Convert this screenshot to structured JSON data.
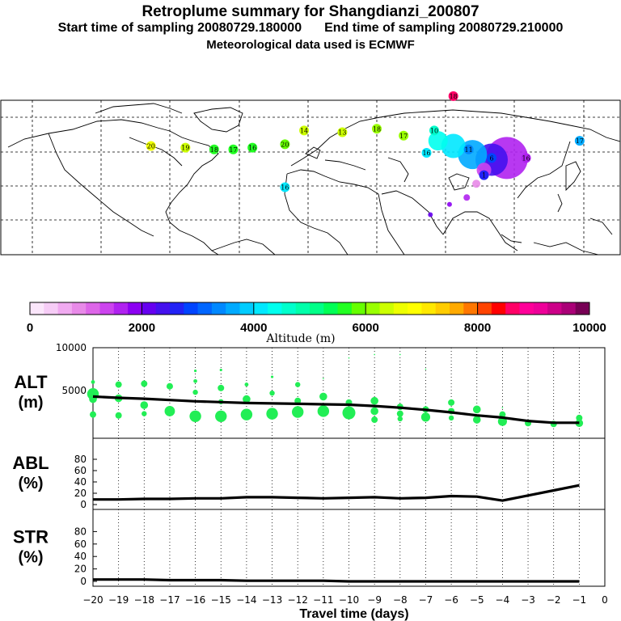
{
  "header": {
    "title": "Retroplume summary for Shangdianzi_200807",
    "start_label": "Start time of sampling 20080729.180000",
    "end_label": "End time of sampling 20080729.210000",
    "met_label": "Meteorological data used is ECMWF"
  },
  "colorbar": {
    "label": "Altitude (m)",
    "ticks": [
      "0",
      "2000",
      "4000",
      "6000",
      "8000",
      "10000"
    ],
    "min": 0,
    "max": 10000,
    "colors": [
      "#fbe6fb",
      "#f6ccf6",
      "#f0aaf0",
      "#e88ae8",
      "#dd66e8",
      "#cc44ee",
      "#b022f0",
      "#8c00f2",
      "#6600f0",
      "#4411ee",
      "#2222f5",
      "#0044ff",
      "#0066ff",
      "#0088ff",
      "#00aaff",
      "#00ccff",
      "#00e8ff",
      "#00ffee",
      "#00ffcc",
      "#00ffaa",
      "#00ff88",
      "#00ff55",
      "#22ff22",
      "#66ff00",
      "#99ff00",
      "#ccff00",
      "#eeff00",
      "#ffff00",
      "#ffe800",
      "#ffcc00",
      "#ffaa00",
      "#ff7700",
      "#ff4400",
      "#ff0000",
      "#ff0066",
      "#ff0099",
      "#ee0099",
      "#cc0088",
      "#aa0077",
      "#770055"
    ]
  },
  "map": {
    "labels": [
      {
        "text": "20",
        "lon": -28,
        "lat": 52,
        "alt": 6500
      },
      {
        "text": "19",
        "lon": -10,
        "lat": 51,
        "alt": 6300
      },
      {
        "text": "18",
        "lon": 5,
        "lat": 50,
        "alt": 5600
      },
      {
        "text": "17",
        "lon": 15,
        "lat": 50,
        "alt": 5700
      },
      {
        "text": "16",
        "lon": 25,
        "lat": 51,
        "alt": 5500
      },
      {
        "text": "20",
        "lon": 42,
        "lat": 53,
        "alt": 5800
      },
      {
        "text": "14",
        "lon": 52,
        "lat": 61,
        "alt": 6300
      },
      {
        "text": "16",
        "lon": 42,
        "lat": 28,
        "alt": 4200
      },
      {
        "text": "13",
        "lon": 72,
        "lat": 60,
        "alt": 6400
      },
      {
        "text": "18",
        "lon": 90,
        "lat": 62,
        "alt": 6200
      },
      {
        "text": "17",
        "lon": 104,
        "lat": 58,
        "alt": 6100
      },
      {
        "text": "10",
        "lon": 120,
        "lat": 61,
        "alt": 4600
      },
      {
        "text": "16",
        "lon": 116,
        "lat": 48,
        "alt": 4200
      },
      {
        "text": "11",
        "lon": 138,
        "lat": 50,
        "alt": 3300
      },
      {
        "text": "6",
        "lon": 150,
        "lat": 45,
        "alt": 2800
      },
      {
        "text": "16",
        "lon": 168,
        "lat": 45,
        "alt": 1600
      },
      {
        "text": "17",
        "lon": 196,
        "lat": 55,
        "alt": 3600
      },
      {
        "text": "18",
        "lon": 130,
        "lat": 81,
        "alt": 8600
      },
      {
        "text": "1",
        "lon": 146,
        "lat": 35,
        "alt": 2600
      }
    ]
  },
  "chart_data": {
    "type": "scatter",
    "x_label": "Travel time (days)",
    "x_ticks": [
      "-20",
      "-19",
      "-18",
      "-17",
      "-16",
      "-15",
      "-14",
      "-13",
      "-12",
      "-11",
      "-10",
      "-9",
      "-8",
      "-7",
      "-6",
      "-5",
      "-4",
      "-3",
      "-2",
      "-1",
      "0"
    ],
    "xlim": [
      -20,
      0
    ],
    "panels": [
      {
        "name": "ALT",
        "label_top": "ALT",
        "label_bottom": "(m)",
        "ylim": [
          0,
          10000
        ],
        "y_ticks": [
          "5000",
          "10000"
        ],
        "mean_line": {
          "x": [
            -20,
            -19,
            -18,
            -17,
            -16,
            -15,
            -14,
            -13,
            -12,
            -11,
            -10,
            -9,
            -8,
            -7,
            -6,
            -5,
            -4,
            -3,
            -2,
            -1
          ],
          "y": [
            4300,
            4150,
            4050,
            3900,
            3750,
            3650,
            3550,
            3500,
            3450,
            3400,
            3350,
            3200,
            3000,
            2750,
            2450,
            2100,
            1850,
            1450,
            1250,
            1250
          ]
        },
        "points": [
          {
            "x": -20,
            "y": 4600,
            "s": 9
          },
          {
            "x": -20,
            "y": 4000,
            "s": 6
          },
          {
            "x": -20,
            "y": 6000,
            "s": 3
          },
          {
            "x": -20,
            "y": 2200,
            "s": 5
          },
          {
            "x": -19,
            "y": 5700,
            "s": 5
          },
          {
            "x": -19,
            "y": 4100,
            "s": 6
          },
          {
            "x": -19,
            "y": 2100,
            "s": 5
          },
          {
            "x": -18,
            "y": 5800,
            "s": 5
          },
          {
            "x": -18,
            "y": 3300,
            "s": 6
          },
          {
            "x": -18,
            "y": 2300,
            "s": 4
          },
          {
            "x": -17,
            "y": 5500,
            "s": 5
          },
          {
            "x": -17,
            "y": 2600,
            "s": 8
          },
          {
            "x": -16,
            "y": 7300,
            "s": 2
          },
          {
            "x": -16,
            "y": 6100,
            "s": 3
          },
          {
            "x": -16,
            "y": 4800,
            "s": 4
          },
          {
            "x": -16,
            "y": 2000,
            "s": 9
          },
          {
            "x": -15,
            "y": 7400,
            "s": 2
          },
          {
            "x": -15,
            "y": 5300,
            "s": 5
          },
          {
            "x": -15,
            "y": 3700,
            "s": 4
          },
          {
            "x": -15,
            "y": 2000,
            "s": 9
          },
          {
            "x": -14,
            "y": 5700,
            "s": 3
          },
          {
            "x": -14,
            "y": 4000,
            "s": 6
          },
          {
            "x": -14,
            "y": 2200,
            "s": 9
          },
          {
            "x": -13,
            "y": 6600,
            "s": 2
          },
          {
            "x": -13,
            "y": 4700,
            "s": 4
          },
          {
            "x": -13,
            "y": 2300,
            "s": 9
          },
          {
            "x": -12,
            "y": 5700,
            "s": 4
          },
          {
            "x": -12,
            "y": 3800,
            "s": 5
          },
          {
            "x": -12,
            "y": 2500,
            "s": 9
          },
          {
            "x": -11,
            "y": 6400,
            "s": 1
          },
          {
            "x": -11,
            "y": 4300,
            "s": 6
          },
          {
            "x": -11,
            "y": 2600,
            "s": 9
          },
          {
            "x": -10,
            "y": 8800,
            "s": 1
          },
          {
            "x": -10,
            "y": 3600,
            "s": 5
          },
          {
            "x": -10,
            "y": 2400,
            "s": 10
          },
          {
            "x": -9,
            "y": 9200,
            "s": 1
          },
          {
            "x": -9,
            "y": 3800,
            "s": 6
          },
          {
            "x": -9,
            "y": 2600,
            "s": 6
          },
          {
            "x": -9,
            "y": 1600,
            "s": 5
          },
          {
            "x": -8,
            "y": 9200,
            "s": 1
          },
          {
            "x": -8,
            "y": 3100,
            "s": 5
          },
          {
            "x": -8,
            "y": 2300,
            "s": 5
          },
          {
            "x": -8,
            "y": 1700,
            "s": 4
          },
          {
            "x": -7,
            "y": 7500,
            "s": 1
          },
          {
            "x": -7,
            "y": 2800,
            "s": 5
          },
          {
            "x": -7,
            "y": 1900,
            "s": 7
          },
          {
            "x": -6,
            "y": 3600,
            "s": 5
          },
          {
            "x": -6,
            "y": 2600,
            "s": 5
          },
          {
            "x": -6,
            "y": 1800,
            "s": 4
          },
          {
            "x": -5,
            "y": 2800,
            "s": 6
          },
          {
            "x": -5,
            "y": 1600,
            "s": 6
          },
          {
            "x": -4,
            "y": 3000,
            "s": 1
          },
          {
            "x": -4,
            "y": 2200,
            "s": 5
          },
          {
            "x": -4,
            "y": 1400,
            "s": 7
          },
          {
            "x": -3,
            "y": 1200,
            "s": 5
          },
          {
            "x": -2,
            "y": 1100,
            "s": 5
          },
          {
            "x": -1,
            "y": 1800,
            "s": 5
          },
          {
            "x": -1,
            "y": 1200,
            "s": 6
          }
        ]
      },
      {
        "name": "ABL",
        "label_top": "ABL",
        "label_bottom": "(%)",
        "ylim": [
          0,
          100
        ],
        "y_ticks": [
          "0",
          "20",
          "40",
          "60",
          "80"
        ],
        "mean_line": {
          "x": [
            -20,
            -19,
            -18,
            -17,
            -16,
            -15,
            -14,
            -13,
            -12,
            -11,
            -10,
            -9,
            -8,
            -7,
            -6,
            -5,
            -4,
            -3,
            -2,
            -1
          ],
          "y": [
            9,
            9,
            10,
            10,
            11,
            11,
            13,
            13,
            12,
            11,
            12,
            13,
            11,
            12,
            15,
            14,
            7,
            16,
            25,
            34
          ]
        }
      },
      {
        "name": "STR",
        "label_top": "STR",
        "label_bottom": "(%)",
        "ylim": [
          0,
          100
        ],
        "y_ticks": [
          "0",
          "20",
          "40",
          "60",
          "80"
        ],
        "mean_line": {
          "x": [
            -20,
            -19,
            -18,
            -17,
            -16,
            -15,
            -14,
            -13,
            -12,
            -11,
            -10,
            -9,
            -8,
            -7,
            -6,
            -5,
            -4,
            -3,
            -2,
            -1
          ],
          "y": [
            3,
            3,
            3,
            2,
            2,
            2,
            1,
            1,
            1,
            1,
            0,
            0,
            0,
            0,
            0,
            0,
            0,
            0,
            0,
            0
          ]
        }
      }
    ]
  }
}
